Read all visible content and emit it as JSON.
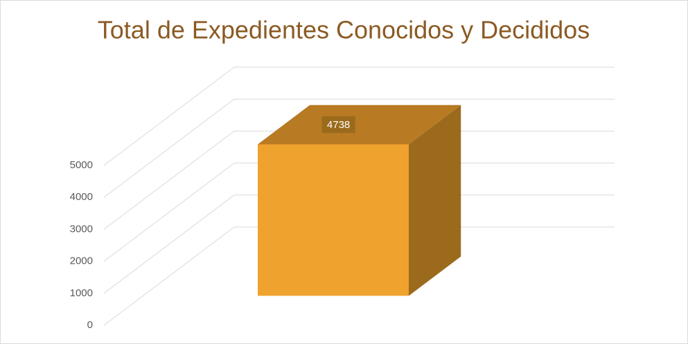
{
  "chart_data": {
    "type": "bar3d",
    "title": "Total de Expedientes Conocidos y Decididos",
    "categories": [
      null
    ],
    "values": [
      4738
    ],
    "color": "#f0a22e",
    "ylim": [
      0,
      5000
    ],
    "yticks": [
      0,
      1000,
      2000,
      3000,
      4000,
      5000
    ],
    "grid": true
  }
}
